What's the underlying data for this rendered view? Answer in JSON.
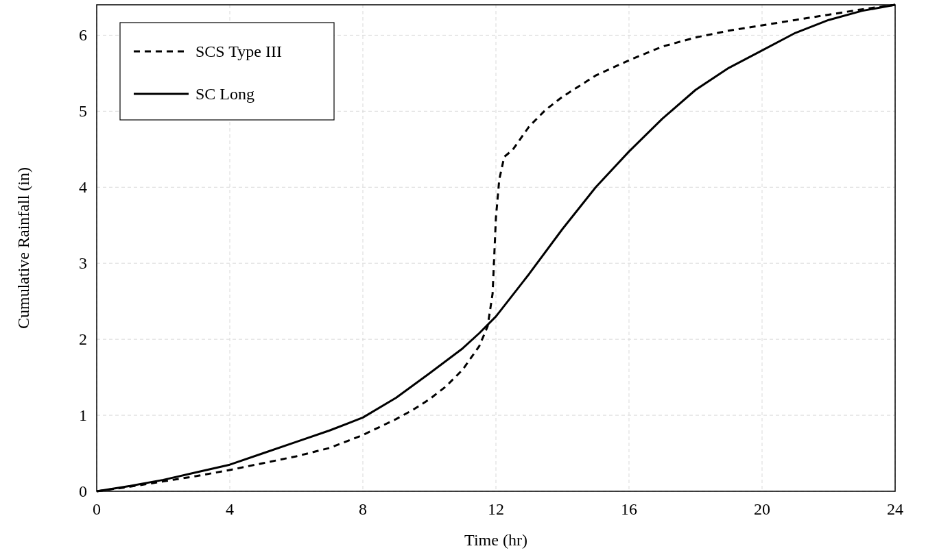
{
  "chart_data": {
    "type": "line",
    "xlabel": "Time (hr)",
    "ylabel": "Cumulative Rainfall (in)",
    "xlim": [
      0,
      24
    ],
    "xticks": [
      0,
      4,
      8,
      12,
      16,
      20,
      24
    ],
    "ylim": [
      0,
      6.4
    ],
    "yticks": [
      0,
      1,
      2,
      3,
      4,
      5,
      6
    ],
    "grid": true,
    "legend": "top left",
    "marker": "none",
    "series": [
      {
        "name": "SCS Type III",
        "color": "#000000",
        "line_style": "dashed",
        "x": [
          0,
          1,
          2,
          3,
          4,
          5,
          6,
          7,
          8,
          9,
          9.5,
          10,
          10.5,
          11,
          11.5,
          11.75,
          11.9,
          12,
          12.1,
          12.25,
          12.5,
          13,
          13.5,
          14,
          15,
          16,
          17,
          18,
          19,
          20,
          21,
          22,
          23,
          24
        ],
        "values": [
          0,
          0.06,
          0.13,
          0.2,
          0.28,
          0.37,
          0.46,
          0.57,
          0.74,
          0.95,
          1.07,
          1.21,
          1.38,
          1.6,
          1.91,
          2.17,
          2.6,
          3.6,
          4.1,
          4.4,
          4.49,
          4.8,
          5.02,
          5.19,
          5.47,
          5.67,
          5.85,
          5.97,
          6.06,
          6.13,
          6.2,
          6.27,
          6.34,
          6.4
        ]
      },
      {
        "name": "SC Long",
        "color": "#000000",
        "line_style": "solid",
        "x": [
          0,
          1,
          2,
          3,
          4,
          5,
          6,
          7,
          8,
          9,
          10,
          11,
          11.5,
          12,
          13,
          14,
          15,
          16,
          17,
          18,
          19,
          20,
          21,
          22,
          23,
          24
        ],
        "values": [
          0,
          0.07,
          0.15,
          0.25,
          0.35,
          0.5,
          0.65,
          0.8,
          0.97,
          1.23,
          1.55,
          1.88,
          2.08,
          2.3,
          2.86,
          3.45,
          4.0,
          4.47,
          4.9,
          5.28,
          5.57,
          5.8,
          6.03,
          6.2,
          6.32,
          6.4
        ]
      }
    ]
  }
}
